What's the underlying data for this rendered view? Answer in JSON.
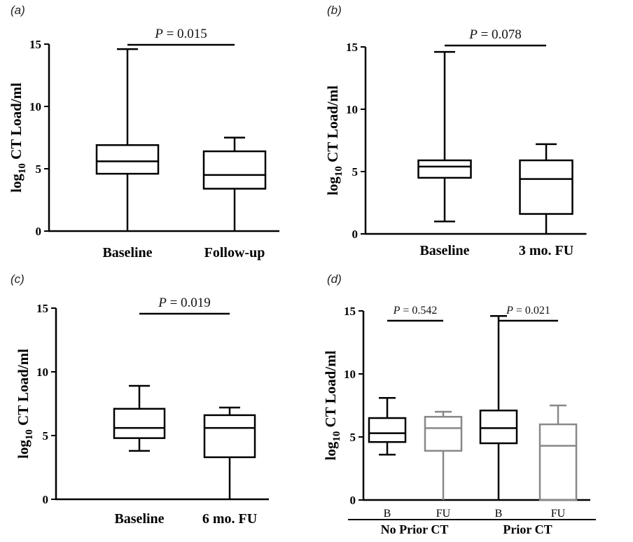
{
  "chart_data": [
    {
      "panel_label": "(a)",
      "type": "boxplot",
      "ylabel_main": "log",
      "ylabel_sub": "10",
      "ylabel_rest": " CT Load/ml",
      "ylim": [
        0,
        15
      ],
      "yticks": [
        "0",
        "5",
        "10",
        "15"
      ],
      "categories": [
        "Baseline",
        "Follow-up"
      ],
      "boxes": [
        {
          "min": 0,
          "q1": 4.6,
          "median": 5.6,
          "q3": 6.9,
          "max": 14.6,
          "color": "#000000"
        },
        {
          "min": 0,
          "q1": 3.4,
          "median": 4.5,
          "q3": 6.4,
          "max": 7.5,
          "color": "#000000"
        }
      ],
      "comparisons": [
        {
          "text": "P = 0.015",
          "from": 0,
          "to": 1
        }
      ]
    },
    {
      "panel_label": "(b)",
      "type": "boxplot",
      "ylabel_main": "log",
      "ylabel_sub": "10",
      "ylabel_rest": " CT Load/ml",
      "ylim": [
        0,
        15
      ],
      "yticks": [
        "0",
        "5",
        "10",
        "15"
      ],
      "categories": [
        "Baseline",
        "3 mo. FU"
      ],
      "boxes": [
        {
          "min": 1.0,
          "q1": 4.5,
          "median": 5.4,
          "q3": 5.9,
          "max": 14.6,
          "color": "#000000"
        },
        {
          "min": 0,
          "q1": 1.6,
          "median": 4.4,
          "q3": 5.9,
          "max": 7.2,
          "color": "#000000"
        }
      ],
      "comparisons": [
        {
          "text": "P = 0.078",
          "from": 0,
          "to": 1
        }
      ]
    },
    {
      "panel_label": "(c)",
      "type": "boxplot",
      "ylabel_main": "log",
      "ylabel_sub": "10",
      "ylabel_rest": " CT Load/ml",
      "ylim": [
        0,
        15
      ],
      "yticks": [
        "0",
        "5",
        "10",
        "15"
      ],
      "categories": [
        "Baseline",
        "6 mo. FU"
      ],
      "boxes": [
        {
          "min": 3.8,
          "q1": 4.8,
          "median": 5.6,
          "q3": 7.1,
          "max": 8.9,
          "color": "#000000"
        },
        {
          "min": 0,
          "q1": 3.3,
          "median": 5.6,
          "q3": 6.6,
          "max": 7.2,
          "color": "#000000"
        }
      ],
      "comparisons": [
        {
          "text": "P = 0.019",
          "from": 0,
          "to": 1
        }
      ]
    },
    {
      "panel_label": "(d)",
      "type": "boxplot",
      "ylabel_main": "log",
      "ylabel_sub": "10",
      "ylabel_rest": " CT Load/ml",
      "ylim": [
        0,
        15
      ],
      "yticks": [
        "0",
        "5",
        "10",
        "15"
      ],
      "categories": [
        "B",
        "FU",
        "B",
        "FU"
      ],
      "groups": [
        {
          "label": "No Prior CT",
          "from": 0,
          "to": 1
        },
        {
          "label": "Prior CT",
          "from": 2,
          "to": 3
        }
      ],
      "boxes": [
        {
          "min": 3.6,
          "q1": 4.6,
          "median": 5.3,
          "q3": 6.5,
          "max": 8.1,
          "color": "#000000"
        },
        {
          "min": 0,
          "q1": 3.9,
          "median": 5.7,
          "q3": 6.6,
          "max": 7.0,
          "color": "#888888"
        },
        {
          "min": 0,
          "q1": 4.5,
          "median": 5.7,
          "q3": 7.1,
          "max": 14.6,
          "color": "#000000"
        },
        {
          "min": 0,
          "q1": 0,
          "median": 4.3,
          "q3": 6.0,
          "max": 7.5,
          "color": "#888888"
        }
      ],
      "comparisons": [
        {
          "text": "P = 0.542",
          "from": 0,
          "to": 1
        },
        {
          "text": "P = 0.021",
          "from": 2,
          "to": 3
        }
      ]
    }
  ]
}
